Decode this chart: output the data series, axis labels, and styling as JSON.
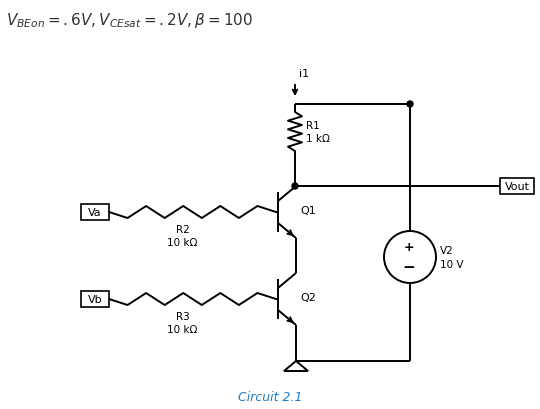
{
  "title_text": "$V_{BEon} = .6V, V_{CEsat} = .2V, \\beta = 100$",
  "caption": "Circuit 2.1",
  "caption_color": "#1E7BC4",
  "bg_color": "#ffffff",
  "line_color": "#000000",
  "R1_label": "R1\n1 kΩ",
  "R2_label": "R2\n10 kΩ",
  "R3_label": "R3\n10 kΩ",
  "Q1_label": "Q1",
  "Q2_label": "Q2",
  "V2_label": "V2\n10 V",
  "Va_label": "Va",
  "Vb_label": "Vb",
  "Vout_label": "Vout",
  "i1_label": "i1",
  "figsize": [
    5.4,
    4.1
  ],
  "dpi": 100
}
